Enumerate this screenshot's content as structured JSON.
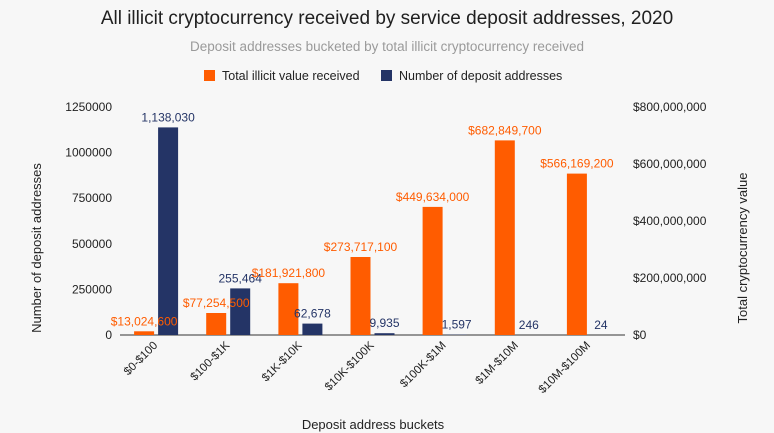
{
  "chart_data": {
    "type": "bar",
    "title": "All illicit cryptocurrency received by service deposit addresses, 2020",
    "subtitle": "Deposit addresses bucketed by total illicit cryptocurrency received",
    "xlabel": "Deposit address buckets",
    "ylabel_left": "Number of deposit addresses",
    "ylabel_right": "Total cryptocurrency value",
    "categories": [
      "$0-$100",
      "$100-$1K",
      "$1K-$10K",
      "$10K-$100K",
      "$100K-$1M",
      "$1M-$10M",
      "$10M-$100M"
    ],
    "left_ticks": [
      "0",
      "250000",
      "500000",
      "750000",
      "1000000",
      "1250000"
    ],
    "right_ticks": [
      "$0",
      "$200,000,000",
      "$400,000,000",
      "$600,000,000",
      "$800,000,000"
    ],
    "ylim_left": [
      0,
      1250000
    ],
    "ylim_right": [
      0,
      800000000
    ],
    "legend_position": "top",
    "grid": false,
    "series": [
      {
        "name": "Total illicit value received",
        "axis": "right",
        "color": "#ff5c00",
        "values": [
          13024600,
          77254500,
          181921800,
          273717100,
          449634000,
          682849700,
          566169200
        ],
        "labels": [
          "$13,024,600",
          "$77,254,500",
          "$181,921,800",
          "$273,717,100",
          "$449,634,000",
          "$682,849,700",
          "$566,169,200"
        ]
      },
      {
        "name": "Number of deposit addresses",
        "axis": "left",
        "color": "#243466",
        "values": [
          1138030,
          255464,
          62678,
          9935,
          1597,
          246,
          24
        ],
        "labels": [
          "1,138,030",
          "255,464",
          "62,678",
          "9,935",
          "1,597",
          "246",
          "24"
        ]
      }
    ]
  }
}
